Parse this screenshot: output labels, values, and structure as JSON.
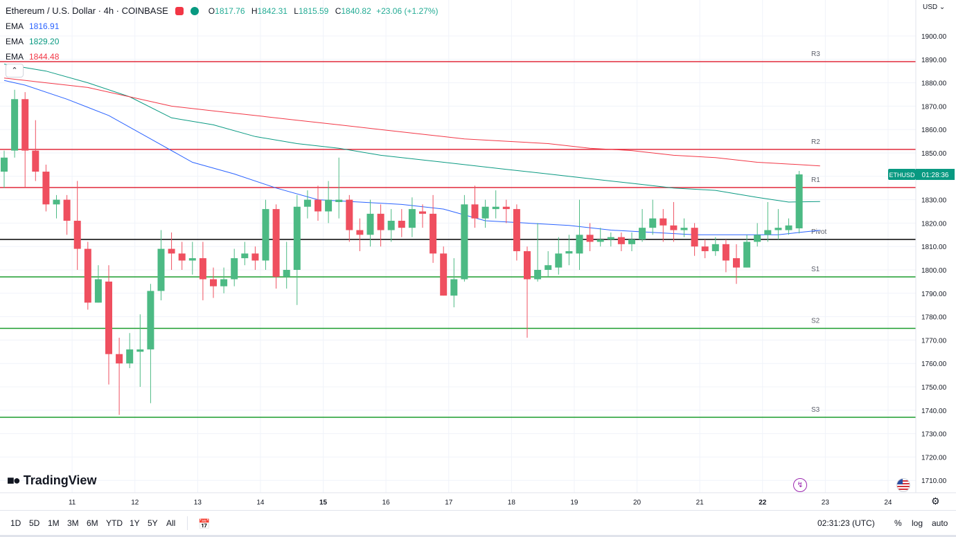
{
  "header": {
    "symbol_title": "Ethereum / U.S. Dollar · 4h · COINBASE",
    "open_label": "O",
    "open": "1817.76",
    "high_label": "H",
    "high": "1842.31",
    "low_label": "L",
    "low": "1815.59",
    "close_label": "C",
    "close": "1840.82",
    "change": "+23.06 (+1.27%)",
    "currency": "USD"
  },
  "ema": [
    {
      "label": "EMA",
      "value": "1816.91",
      "color": "#2962ff"
    },
    {
      "label": "EMA",
      "value": "1829.20",
      "color": "#089981"
    },
    {
      "label": "EMA",
      "value": "1844.48",
      "color": "#f23645"
    }
  ],
  "logo": {
    "text": "TradingView"
  },
  "price_tag": {
    "symbol": "ETHUSD",
    "countdown": "01:28:36",
    "color": "#089981"
  },
  "bottom_bar": {
    "timeframes": [
      "1D",
      "5D",
      "1M",
      "3M",
      "6M",
      "YTD",
      "1Y",
      "5Y",
      "All"
    ],
    "clock": "02:31:23 (UTC)",
    "percent": "%",
    "log": "log",
    "auto": "auto"
  },
  "colors": {
    "up": "#4cba84",
    "down": "#ef4f5f",
    "resistance": "#e0293a",
    "support": "#1a9c2c",
    "pivot": "#000000"
  },
  "chart_data": {
    "type": "candlestick",
    "title": "Ethereum / U.S. Dollar · 4h · COINBASE",
    "ylim": [
      1703,
      1915
    ],
    "y_ticks": [
      1710,
      1720,
      1730,
      1740,
      1750,
      1760,
      1770,
      1780,
      1790,
      1800,
      1810,
      1820,
      1830,
      1840,
      1850,
      1860,
      1870,
      1880,
      1890,
      1900
    ],
    "x_ticks": [
      {
        "label": "11",
        "index": 6.5
      },
      {
        "label": "12",
        "index": 12.5
      },
      {
        "label": "13",
        "index": 18.5
      },
      {
        "label": "14",
        "index": 24.5
      },
      {
        "label": "15",
        "index": 30.5
      },
      {
        "label": "16",
        "index": 36.5
      },
      {
        "label": "17",
        "index": 42.5
      },
      {
        "label": "18",
        "index": 48.5
      },
      {
        "label": "19",
        "index": 54.5
      },
      {
        "label": "20",
        "index": 60.5
      },
      {
        "label": "21",
        "index": 66.5
      },
      {
        "label": "22",
        "index": 72.5
      },
      {
        "label": "23",
        "index": 78.5
      },
      {
        "label": "24",
        "index": 84.5
      }
    ],
    "candles": [
      [
        1842,
        1848,
        1835,
        1851
      ],
      [
        1851,
        1873,
        1848,
        1877
      ],
      [
        1873,
        1851,
        1835,
        1876
      ],
      [
        1851,
        1842,
        1838,
        1864
      ],
      [
        1842,
        1828,
        1825,
        1845
      ],
      [
        1828,
        1830,
        1822,
        1832
      ],
      [
        1830,
        1821,
        1815,
        1832
      ],
      [
        1821,
        1809,
        1800,
        1838
      ],
      [
        1809,
        1786,
        1783,
        1812
      ],
      [
        1786,
        1796,
        1786,
        1802
      ],
      [
        1795,
        1764,
        1751,
        1802
      ],
      [
        1764,
        1760,
        1738,
        1771
      ],
      [
        1760,
        1766,
        1758,
        1773
      ],
      [
        1765,
        1766,
        1750,
        1781
      ],
      [
        1766,
        1791,
        1743,
        1794
      ],
      [
        1791,
        1809,
        1787,
        1817
      ],
      [
        1809,
        1807,
        1800,
        1816
      ],
      [
        1807,
        1804,
        1800,
        1812
      ],
      [
        1804,
        1805,
        1798,
        1812
      ],
      [
        1805,
        1796,
        1787,
        1812
      ],
      [
        1796,
        1793,
        1788,
        1801
      ],
      [
        1793,
        1796,
        1790,
        1801
      ],
      [
        1796,
        1805,
        1793,
        1809
      ],
      [
        1805,
        1807,
        1802,
        1812
      ],
      [
        1807,
        1804,
        1800,
        1810
      ],
      [
        1804,
        1826,
        1800,
        1830
      ],
      [
        1826,
        1797,
        1792,
        1828
      ],
      [
        1797,
        1800,
        1792,
        1812
      ],
      [
        1800,
        1827,
        1785,
        1832
      ],
      [
        1827,
        1830,
        1822,
        1834
      ],
      [
        1830,
        1825,
        1821,
        1836
      ],
      [
        1825,
        1830,
        1820,
        1838
      ],
      [
        1829,
        1830,
        1822,
        1848
      ],
      [
        1830,
        1817,
        1812,
        1832
      ],
      [
        1817,
        1815,
        1808,
        1822
      ],
      [
        1815,
        1824,
        1810,
        1830
      ],
      [
        1824,
        1817,
        1810,
        1828
      ],
      [
        1817,
        1821,
        1812,
        1826
      ],
      [
        1821,
        1818,
        1814,
        1826
      ],
      [
        1818,
        1826,
        1814,
        1831
      ],
      [
        1825,
        1824,
        1818,
        1828
      ],
      [
        1824,
        1807,
        1803,
        1832
      ],
      [
        1807,
        1789,
        1789,
        1810
      ],
      [
        1789,
        1796,
        1784,
        1805
      ],
      [
        1796,
        1828,
        1795,
        1832
      ],
      [
        1828,
        1822,
        1818,
        1836
      ],
      [
        1822,
        1827,
        1818,
        1830
      ],
      [
        1826,
        1827,
        1822,
        1834
      ],
      [
        1827,
        1826,
        1820,
        1830
      ],
      [
        1826,
        1808,
        1804,
        1828
      ],
      [
        1808,
        1796,
        1771,
        1810
      ],
      [
        1796,
        1800,
        1795,
        1820
      ],
      [
        1800,
        1802,
        1797,
        1808
      ],
      [
        1801,
        1807,
        1798,
        1814
      ],
      [
        1807,
        1808,
        1802,
        1815
      ],
      [
        1807,
        1815,
        1800,
        1830
      ],
      [
        1815,
        1812,
        1808,
        1820
      ],
      [
        1812,
        1813,
        1810,
        1818
      ],
      [
        1813,
        1814,
        1810,
        1816
      ],
      [
        1814,
        1811,
        1808,
        1816
      ],
      [
        1811,
        1813,
        1808,
        1816
      ],
      [
        1813,
        1818,
        1812,
        1826
      ],
      [
        1818,
        1822,
        1815,
        1830
      ],
      [
        1822,
        1819,
        1812,
        1826
      ],
      [
        1819,
        1817,
        1812,
        1829
      ],
      [
        1817,
        1818,
        1814,
        1822
      ],
      [
        1818,
        1810,
        1806,
        1820
      ],
      [
        1810,
        1808,
        1805,
        1813
      ],
      [
        1808,
        1811,
        1806,
        1814
      ],
      [
        1811,
        1804,
        1799,
        1813
      ],
      [
        1805,
        1801,
        1794,
        1811
      ],
      [
        1801,
        1812,
        1801,
        1815
      ],
      [
        1812,
        1815,
        1810,
        1820
      ],
      [
        1815,
        1817,
        1812,
        1829
      ],
      [
        1817,
        1818,
        1813,
        1826
      ],
      [
        1817,
        1819,
        1815,
        1822
      ],
      [
        1817.76,
        1840.82,
        1815.59,
        1842.31
      ]
    ],
    "ema_series": [
      {
        "name": "EMA",
        "value": 1816.91,
        "color": "#2962ff",
        "points": [
          [
            0,
            1881
          ],
          [
            2,
            1879
          ],
          [
            6,
            1873
          ],
          [
            10,
            1866
          ],
          [
            14,
            1856
          ],
          [
            18,
            1846
          ],
          [
            22,
            1841
          ],
          [
            26,
            1835
          ],
          [
            30,
            1830
          ],
          [
            34,
            1829
          ],
          [
            38,
            1828
          ],
          [
            42,
            1826
          ],
          [
            46,
            1821
          ],
          [
            50,
            1820
          ],
          [
            54,
            1819
          ],
          [
            58,
            1817
          ],
          [
            62,
            1816
          ],
          [
            66,
            1815
          ],
          [
            70,
            1815
          ],
          [
            74,
            1815
          ],
          [
            76,
            1816
          ],
          [
            78,
            1816.91
          ]
        ]
      },
      {
        "name": "EMA",
        "value": 1829.2,
        "color": "#089981",
        "points": [
          [
            0,
            1888
          ],
          [
            4,
            1885
          ],
          [
            8,
            1880
          ],
          [
            12,
            1874
          ],
          [
            16,
            1865
          ],
          [
            20,
            1862
          ],
          [
            24,
            1857
          ],
          [
            28,
            1854
          ],
          [
            32,
            1852
          ],
          [
            36,
            1849
          ],
          [
            40,
            1847
          ],
          [
            44,
            1845
          ],
          [
            48,
            1843
          ],
          [
            52,
            1841
          ],
          [
            56,
            1839
          ],
          [
            60,
            1837
          ],
          [
            64,
            1835
          ],
          [
            68,
            1834
          ],
          [
            72,
            1831
          ],
          [
            75,
            1829
          ],
          [
            78,
            1829.2
          ]
        ]
      },
      {
        "name": "EMA",
        "value": 1844.48,
        "color": "#f23645",
        "points": [
          [
            0,
            1882
          ],
          [
            4,
            1880
          ],
          [
            8,
            1878
          ],
          [
            12,
            1874
          ],
          [
            16,
            1870
          ],
          [
            20,
            1868
          ],
          [
            24,
            1866
          ],
          [
            28,
            1864
          ],
          [
            32,
            1862
          ],
          [
            36,
            1860
          ],
          [
            40,
            1858
          ],
          [
            44,
            1856
          ],
          [
            48,
            1855
          ],
          [
            52,
            1854
          ],
          [
            56,
            1852
          ],
          [
            60,
            1851
          ],
          [
            64,
            1849
          ],
          [
            68,
            1848
          ],
          [
            72,
            1846
          ],
          [
            76,
            1845
          ],
          [
            78,
            1844.48
          ]
        ]
      }
    ],
    "levels": [
      {
        "label": "R3",
        "value": 1889,
        "kind": "resistance"
      },
      {
        "label": "R2",
        "value": 1851.5,
        "kind": "resistance"
      },
      {
        "label": "R1",
        "value": 1835.2,
        "kind": "resistance"
      },
      {
        "label": "Pivot",
        "value": 1813,
        "kind": "pivot"
      },
      {
        "label": "S1",
        "value": 1797,
        "kind": "support"
      },
      {
        "label": "S2",
        "value": 1775,
        "kind": "support"
      },
      {
        "label": "S3",
        "value": 1737,
        "kind": "support"
      }
    ],
    "last_price": 1840.82
  }
}
